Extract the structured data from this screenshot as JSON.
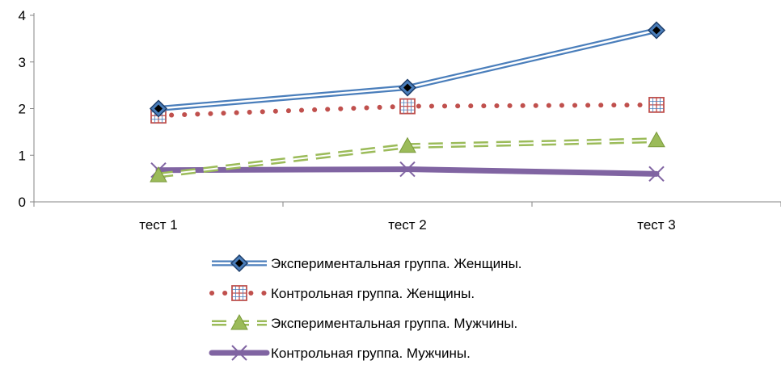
{
  "chart_data": {
    "type": "line",
    "categories": [
      "тест 1",
      "тест 2",
      "тест 3"
    ],
    "ylim": [
      0,
      4
    ],
    "yticks": [
      0,
      1,
      2,
      3,
      4
    ],
    "grid": false,
    "legend_position": "bottom",
    "series": [
      {
        "name": "Экспериментальная группа. Женщины.",
        "values": [
          2.0,
          2.45,
          3.68
        ],
        "color": "#4a7ebb",
        "line_style": "double",
        "marker": "diamond",
        "marker_fill": "#4a7ebb"
      },
      {
        "name": "Контрольная группа. Женщины.",
        "values": [
          1.85,
          2.05,
          2.08
        ],
        "color": "#c0504d",
        "line_style": "dotted",
        "marker": "grid-square",
        "marker_fill": "#ffffff"
      },
      {
        "name": "Экспериментальная группа. Мужчины.",
        "values": [
          0.57,
          1.2,
          1.32
        ],
        "color": "#9bbb59",
        "line_style": "dashed",
        "marker": "triangle",
        "marker_fill": "#9bbb59"
      },
      {
        "name": "Контрольная группа. Мужчины.",
        "values": [
          0.68,
          0.7,
          0.6
        ],
        "color": "#8064a2",
        "line_style": "thick",
        "marker": "x",
        "marker_fill": "#8064a2"
      }
    ]
  }
}
